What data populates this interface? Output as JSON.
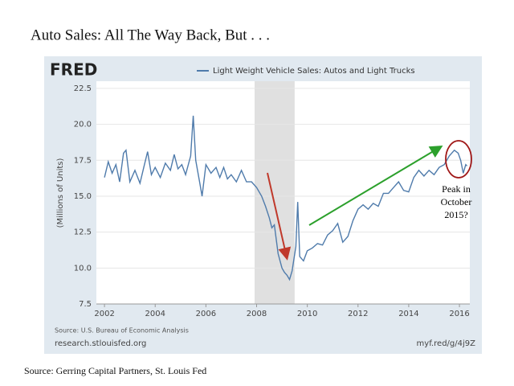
{
  "title": "Auto Sales: All The Way Back, But . . .",
  "footer": "Source: Gerring Capital Partners, St. Louis Fed",
  "chart_data": {
    "type": "line",
    "logo": "FRED",
    "ylabel": "(Millions of Units)",
    "source": "Source: U.S. Bureau of Economic Analysis",
    "site": "research.stlouisfed.org",
    "link": "myf.red/g/4j9Z",
    "annotation": [
      "Peak in",
      "October",
      "2015?"
    ],
    "shaded_range": [
      2007.92,
      2009.5
    ],
    "grid": true,
    "xlim": [
      2001.68,
      2016.41
    ],
    "xticks": [
      2002,
      2004,
      2006,
      2008,
      2010,
      2012,
      2014,
      2016
    ],
    "ylim": [
      7.5,
      23.0
    ],
    "yticks": [
      7.5,
      {
        "value": 10,
        "label": "10.0"
      },
      12.5,
      {
        "value": 15,
        "label": "15.0"
      },
      17.5,
      {
        "value": 20,
        "label": "20.0"
      },
      22.5
    ],
    "x": [
      2002.0,
      2002.15,
      2002.3,
      2002.45,
      2002.6,
      2002.75,
      2002.85,
      2003.0,
      2003.2,
      2003.4,
      2003.55,
      2003.7,
      2003.85,
      2004.0,
      2004.2,
      2004.4,
      2004.6,
      2004.75,
      2004.9,
      2005.05,
      2005.2,
      2005.4,
      2005.5,
      2005.6,
      2005.75,
      2005.85,
      2006.0,
      2006.2,
      2006.4,
      2006.55,
      2006.7,
      2006.85,
      2007.0,
      2007.2,
      2007.4,
      2007.6,
      2007.8,
      2008.0,
      2008.2,
      2008.35,
      2008.5,
      2008.6,
      2008.7,
      2008.85,
      2009.0,
      2009.1,
      2009.2,
      2009.3,
      2009.4,
      2009.55,
      2009.62,
      2009.7,
      2009.85,
      2010.0,
      2010.2,
      2010.4,
      2010.6,
      2010.8,
      2011.0,
      2011.2,
      2011.4,
      2011.6,
      2011.8,
      2012.0,
      2012.2,
      2012.4,
      2012.6,
      2012.8,
      2013.0,
      2013.2,
      2013.4,
      2013.6,
      2013.8,
      2014.0,
      2014.2,
      2014.4,
      2014.6,
      2014.8,
      2015.0,
      2015.2,
      2015.4,
      2015.6,
      2015.8,
      2015.95,
      2016.05,
      2016.15,
      2016.25,
      2016.3
    ],
    "series": [
      {
        "name": "Light Weight Vehicle Sales: Autos and Light Trucks",
        "color": "#4f7bab",
        "values": [
          16.3,
          17.4,
          16.6,
          17.2,
          16.0,
          18.0,
          18.2,
          16.0,
          16.8,
          15.9,
          17.0,
          18.1,
          16.5,
          17.0,
          16.3,
          17.3,
          16.8,
          17.9,
          16.9,
          17.2,
          16.5,
          17.8,
          20.6,
          17.5,
          16.0,
          15.0,
          17.2,
          16.6,
          17.0,
          16.3,
          17.0,
          16.2,
          16.5,
          16.0,
          16.8,
          16.0,
          16.0,
          15.6,
          15.0,
          14.3,
          13.5,
          12.8,
          13.0,
          11.0,
          10.0,
          9.7,
          9.5,
          9.2,
          9.8,
          11.5,
          14.6,
          10.8,
          10.5,
          11.2,
          11.4,
          11.7,
          11.6,
          12.3,
          12.6,
          13.1,
          11.8,
          12.2,
          13.3,
          14.1,
          14.4,
          14.1,
          14.5,
          14.3,
          15.2,
          15.2,
          15.6,
          16.0,
          15.4,
          15.3,
          16.3,
          16.8,
          16.4,
          16.8,
          16.5,
          17.0,
          17.2,
          17.8,
          18.2,
          18.0,
          17.5,
          16.6,
          17.2,
          17.1
        ]
      }
    ]
  }
}
